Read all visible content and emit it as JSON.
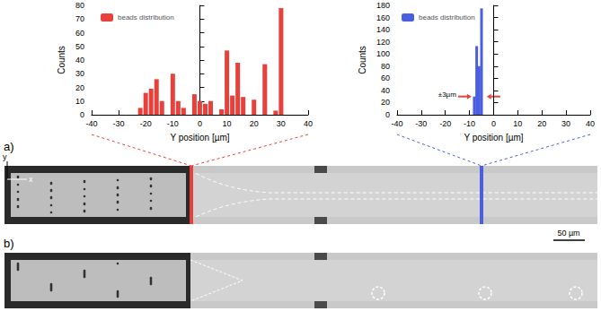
{
  "chart_data": [
    {
      "type": "bar",
      "x_label": "Y position [µm]",
      "y_label": "Counts",
      "x": [
        -22,
        -20,
        -18,
        -16,
        -14,
        -10,
        -8,
        -6,
        -2,
        0,
        2,
        4,
        8,
        10,
        12,
        14,
        16,
        20,
        24,
        28,
        30
      ],
      "series": [
        {
          "name": "beads distribution",
          "color": "#e8413c",
          "values": [
            5,
            16,
            19,
            26,
            10,
            30,
            10,
            5,
            15,
            10,
            8,
            10,
            4,
            47,
            14,
            38,
            13,
            11,
            37,
            3,
            78
          ]
        }
      ],
      "xlim": [
        -40,
        40
      ],
      "xticks": [
        -40,
        -30,
        -20,
        -10,
        0,
        10,
        20,
        30,
        40
      ],
      "ylim": [
        0,
        80
      ],
      "yticks": [
        0,
        10,
        20,
        30,
        40,
        50,
        60,
        70,
        80
      ],
      "grid": false,
      "legend": "upper left"
    },
    {
      "type": "bar",
      "x_label": "Y position [µm]",
      "y_label": "Counts",
      "x": [
        -8,
        -7,
        -6,
        -5
      ],
      "series": [
        {
          "name": "beads distribution",
          "color": "#4a5fe0",
          "values": [
            30,
            113,
            80,
            175
          ]
        }
      ],
      "xlim": [
        -40,
        40
      ],
      "xticks": [
        -40,
        -30,
        -20,
        -10,
        0,
        10,
        20,
        30,
        40
      ],
      "ylim": [
        0,
        180
      ],
      "yticks": [
        0,
        20,
        40,
        60,
        80,
        100,
        120,
        140,
        160,
        180
      ],
      "grid": false,
      "legend": "upper left",
      "annotation": {
        "text": "±3µm",
        "x": [
          -11,
          -1
        ],
        "y": 30
      }
    }
  ],
  "figure": {
    "panels": [
      "a)",
      "b)"
    ],
    "scale_bar": "50 µm",
    "axis_x": "x",
    "axis_y": "y"
  }
}
